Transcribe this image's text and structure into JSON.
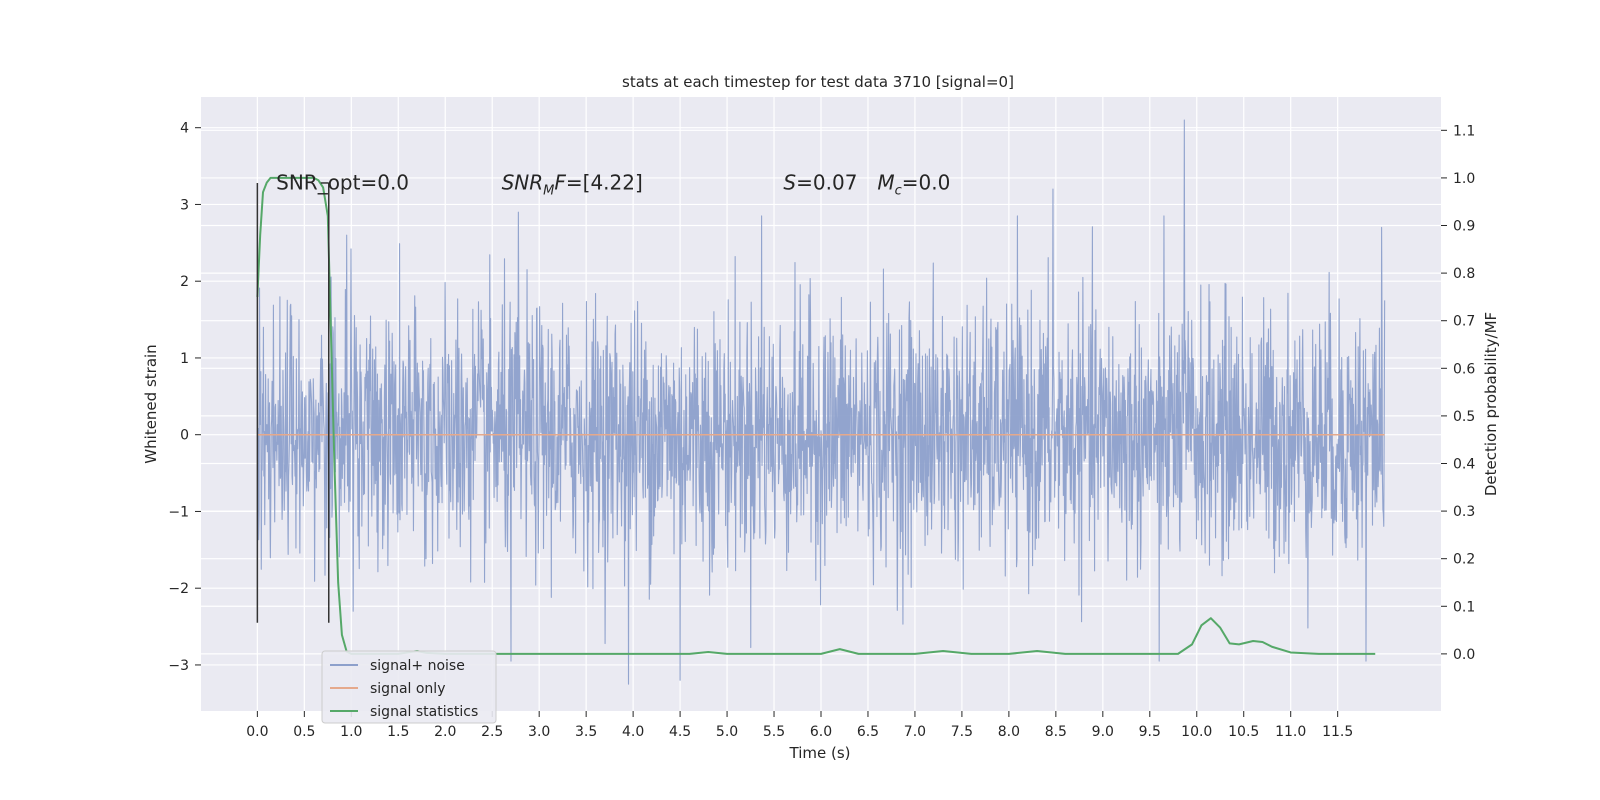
{
  "chart_data": {
    "type": "line",
    "title": "stats at each timestep for test data 3710 [signal=0]",
    "xlabel": "Time (s)",
    "ylabel": "Whitened strain",
    "y2label": "Detection probability/MF",
    "xlim": [
      -0.6,
      12.6
    ],
    "ylim": [
      -3.6,
      4.4
    ],
    "y2lim": [
      -0.12,
      1.17
    ],
    "x_ticks": [
      0.0,
      0.5,
      1.0,
      1.5,
      2.0,
      2.5,
      3.0,
      3.5,
      4.0,
      4.5,
      5.0,
      5.5,
      6.0,
      6.5,
      7.0,
      7.5,
      8.0,
      8.5,
      9.0,
      9.5,
      10.0,
      10.5,
      11.0,
      11.5
    ],
    "x_tick_labels": [
      "0.0",
      "0.5",
      "1.0",
      "1.5",
      "2.0",
      "2.5",
      "3.0",
      "3.5",
      "4.0",
      "4.5",
      "5.0",
      "5.5",
      "6.0",
      "6.5",
      "7.0",
      "7.5",
      "8.0",
      "8.5",
      "9.0",
      "9.5",
      "10.0",
      "10.5",
      "11.0",
      "11.5"
    ],
    "y_ticks": [
      -3,
      -2,
      -1,
      0,
      1,
      2,
      3,
      4
    ],
    "y_tick_labels": [
      "−3",
      "−2",
      "−1",
      "0",
      "1",
      "2",
      "3",
      "4"
    ],
    "y2_ticks": [
      0.0,
      0.1,
      0.2,
      0.3,
      0.4,
      0.5,
      0.6,
      0.7,
      0.8,
      0.9,
      1.0,
      1.1
    ],
    "y2_tick_labels": [
      "0.0",
      "0.1",
      "0.2",
      "0.3",
      "0.4",
      "0.5",
      "0.6",
      "0.7",
      "0.8",
      "0.9",
      "1.0",
      "1.1"
    ],
    "grid": true,
    "legend_position": "lower-left",
    "series": [
      {
        "name": "signal+ noise",
        "color": "#8da0cb",
        "axis": "left",
        "x_range": [
          0.0,
          12.0
        ],
        "distribution": "gaussian noise, sd approx 0.8",
        "peaks": [
          {
            "x": 9.87,
            "y": 4.1
          },
          {
            "x": 8.47,
            "y": 3.2
          },
          {
            "x": 2.78,
            "y": 2.9
          },
          {
            "x": 5.37,
            "y": 2.85
          },
          {
            "x": 11.97,
            "y": 2.7
          },
          {
            "x": 0.95,
            "y": 2.6
          },
          {
            "x": 3.95,
            "y": -3.25
          },
          {
            "x": 4.5,
            "y": -3.2
          },
          {
            "x": 9.6,
            "y": -2.95
          },
          {
            "x": 11.8,
            "y": -2.95
          },
          {
            "x": 2.7,
            "y": -2.95
          }
        ]
      },
      {
        "name": "signal only",
        "color": "#e5a98c",
        "axis": "left",
        "x": [
          0.0,
          12.0
        ],
        "y": [
          0.0,
          0.0
        ]
      },
      {
        "name": "signal statistics",
        "color": "#55a868",
        "axis": "right",
        "x": [
          0.0,
          0.03,
          0.06,
          0.1,
          0.14,
          0.2,
          0.3,
          0.4,
          0.5,
          0.6,
          0.65,
          0.7,
          0.75,
          0.78,
          0.82,
          0.86,
          0.9,
          0.95,
          1.0,
          1.5,
          1.7,
          1.8,
          2.0,
          3.0,
          4.0,
          4.6,
          4.8,
          5.0,
          6.0,
          6.2,
          6.4,
          7.0,
          7.3,
          7.6,
          8.0,
          8.3,
          8.6,
          9.0,
          9.5,
          9.8,
          9.95,
          10.05,
          10.15,
          10.25,
          10.35,
          10.45,
          10.6,
          10.7,
          10.8,
          11.0,
          11.3,
          11.6,
          11.9
        ],
        "y": [
          0.75,
          0.88,
          0.97,
          0.99,
          1.0,
          1.0,
          1.0,
          1.0,
          1.0,
          1.0,
          0.995,
          0.98,
          0.92,
          0.7,
          0.4,
          0.15,
          0.04,
          0.005,
          0.0,
          0.0,
          0.006,
          0.002,
          0.0,
          0.0,
          0.0,
          0.0,
          0.004,
          0.0,
          0.0,
          0.01,
          0.0,
          0.0,
          0.006,
          0.0,
          0.0,
          0.006,
          0.0,
          0.0,
          0.0,
          0.0,
          0.02,
          0.06,
          0.075,
          0.055,
          0.022,
          0.02,
          0.027,
          0.025,
          0.015,
          0.003,
          0.0,
          0.0,
          0.0
        ]
      }
    ],
    "markers": [
      {
        "x": 0.0,
        "y_range": [
          -2.45,
          3.28
        ],
        "color": "#333333"
      },
      {
        "x": 0.76,
        "y_range": [
          -2.45,
          3.28
        ],
        "color": "#333333"
      }
    ],
    "annotations": [
      {
        "text": "SNR_opt=0.0",
        "x": 0.2,
        "y": 3.3,
        "italic": false
      },
      {
        "text": "SNR",
        "sub": "M",
        "text_after": "F=[4.22]",
        "x": 2.6,
        "y": 3.3,
        "italic": true
      },
      {
        "text": "S",
        "text_after": "=0.07",
        "x": 5.6,
        "y": 3.3,
        "italic": true
      },
      {
        "text": "M",
        "sub": "c",
        "text_after": "=0.0",
        "x": 6.6,
        "y": 3.3,
        "italic": true
      }
    ]
  }
}
